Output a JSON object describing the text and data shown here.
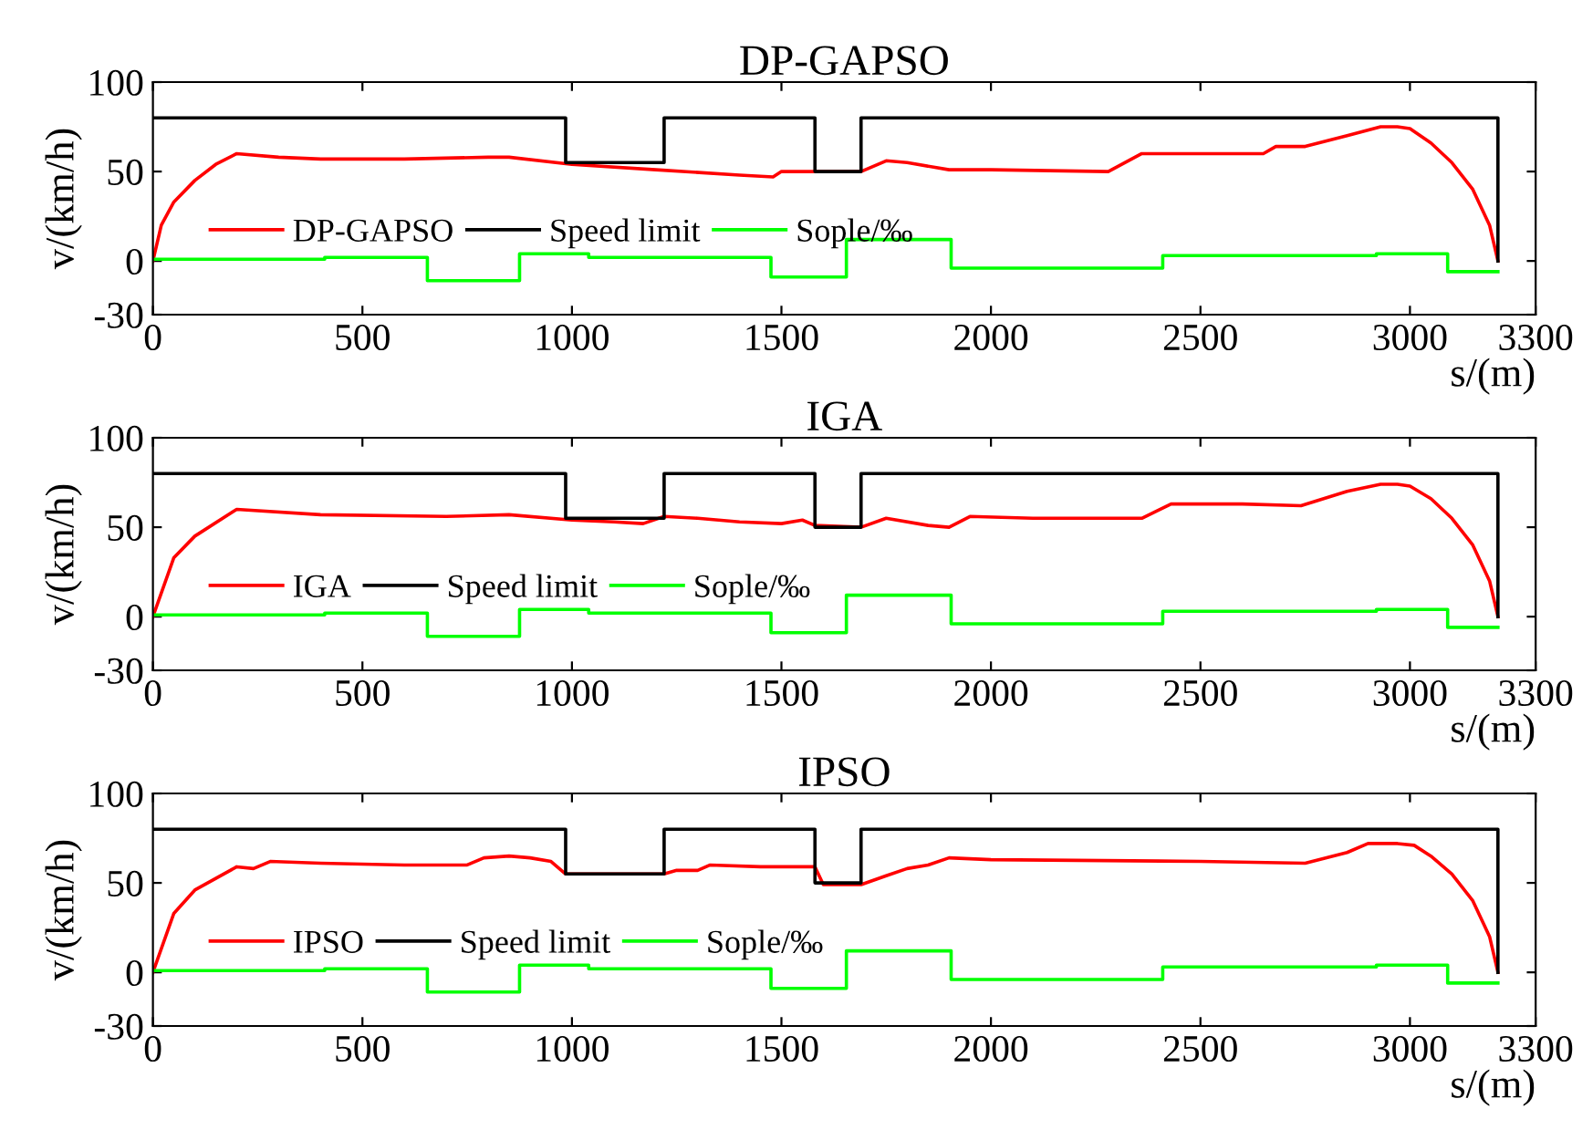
{
  "chart_data": [
    {
      "type": "line",
      "title": "DP-GAPSO",
      "xlabel": "s/(m)",
      "ylabel": "v/(km/h)",
      "xlim": [
        0,
        3300
      ],
      "xticks": [
        0,
        500,
        1000,
        1500,
        2000,
        2500,
        3000,
        3300
      ],
      "ylim": [
        -30,
        100
      ],
      "yticks": [
        -30,
        0,
        50,
        100
      ],
      "grid": false,
      "legend": "left",
      "marker": "none",
      "line_style": "solid",
      "series": [
        {
          "name": "DP-GAPSO",
          "color": "#ff0000",
          "x": [
            0,
            20,
            50,
            100,
            150,
            200,
            300,
            400,
            600,
            800,
            850,
            1000,
            1200,
            1400,
            1480,
            1500,
            1690,
            1750,
            1800,
            1900,
            2000,
            2280,
            2360,
            2500,
            2650,
            2680,
            2750,
            2850,
            2930,
            2970,
            3000,
            3050,
            3100,
            3150,
            3190,
            3210
          ],
          "values": [
            0,
            20,
            33,
            45,
            54,
            60,
            58,
            57,
            57,
            58,
            58,
            54,
            51,
            48,
            47,
            50,
            50,
            56,
            55,
            51,
            51,
            50,
            60,
            60,
            60,
            64,
            64,
            70,
            75,
            75,
            74,
            66,
            55,
            40,
            20,
            0
          ]
        },
        {
          "name": "Speed limit",
          "color": "#000000",
          "x": [
            0,
            985,
            985,
            1220,
            1220,
            1580,
            1580,
            1690,
            1690,
            3210,
            3210
          ],
          "values": [
            80,
            80,
            55,
            55,
            80,
            80,
            50,
            50,
            80,
            80,
            0
          ]
        },
        {
          "name": "Sople/‰",
          "color": "#00ff00",
          "x": [
            0,
            410,
            410,
            655,
            655,
            875,
            875,
            1040,
            1040,
            1475,
            1475,
            1655,
            1655,
            1905,
            1905,
            2410,
            2410,
            2920,
            2920,
            3090,
            3090,
            3210
          ],
          "values": [
            1,
            1,
            2,
            2,
            -11,
            -11,
            4,
            4,
            2,
            2,
            -9,
            -9,
            12,
            12,
            -4,
            -4,
            3,
            3,
            4,
            4,
            -6,
            -6
          ]
        }
      ]
    },
    {
      "type": "line",
      "title": "IGA",
      "xlabel": "s/(m)",
      "ylabel": "v/(km/h)",
      "xlim": [
        0,
        3300
      ],
      "xticks": [
        0,
        500,
        1000,
        1500,
        2000,
        2500,
        3000,
        3300
      ],
      "ylim": [
        -30,
        100
      ],
      "yticks": [
        -30,
        0,
        50,
        100
      ],
      "grid": false,
      "legend": "left",
      "marker": "none",
      "line_style": "solid",
      "series": [
        {
          "name": "IGA",
          "color": "#ff0000",
          "x": [
            0,
            50,
            100,
            200,
            400,
            700,
            850,
            1000,
            1100,
            1170,
            1220,
            1300,
            1400,
            1500,
            1550,
            1580,
            1690,
            1750,
            1850,
            1900,
            1950,
            2100,
            2360,
            2430,
            2600,
            2740,
            2850,
            2930,
            2970,
            3000,
            3050,
            3100,
            3150,
            3190,
            3210
          ],
          "values": [
            0,
            33,
            45,
            60,
            57,
            56,
            57,
            54,
            53,
            52,
            56,
            55,
            53,
            52,
            54,
            51,
            50,
            55,
            51,
            50,
            56,
            55,
            55,
            63,
            63,
            62,
            70,
            74,
            74,
            73,
            66,
            55,
            40,
            20,
            0
          ]
        },
        {
          "name": "Speed limit",
          "color": "#000000",
          "x": [
            0,
            985,
            985,
            1220,
            1220,
            1580,
            1580,
            1690,
            1690,
            3210,
            3210
          ],
          "values": [
            80,
            80,
            55,
            55,
            80,
            80,
            50,
            50,
            80,
            80,
            0
          ]
        },
        {
          "name": "Sople/‰",
          "color": "#00ff00",
          "x": [
            0,
            410,
            410,
            655,
            655,
            875,
            875,
            1040,
            1040,
            1475,
            1475,
            1655,
            1655,
            1905,
            1905,
            2410,
            2410,
            2920,
            2920,
            3090,
            3090,
            3210
          ],
          "values": [
            1,
            1,
            2,
            2,
            -11,
            -11,
            4,
            4,
            2,
            2,
            -9,
            -9,
            12,
            12,
            -4,
            -4,
            3,
            3,
            4,
            4,
            -6,
            -6
          ]
        }
      ]
    },
    {
      "type": "line",
      "title": "IPSO",
      "xlabel": "s/(m)",
      "ylabel": "v/(km/h)",
      "xlim": [
        0,
        3300
      ],
      "xticks": [
        0,
        500,
        1000,
        1500,
        2000,
        2500,
        3000,
        3300
      ],
      "ylim": [
        -30,
        100
      ],
      "yticks": [
        -30,
        0,
        50,
        100
      ],
      "grid": false,
      "legend": "left",
      "marker": "none",
      "line_style": "solid",
      "series": [
        {
          "name": "IPSO",
          "color": "#ff0000",
          "x": [
            0,
            50,
            100,
            200,
            240,
            280,
            400,
            600,
            750,
            790,
            850,
            900,
            950,
            985,
            1220,
            1250,
            1300,
            1330,
            1450,
            1580,
            1600,
            1690,
            1750,
            1800,
            1850,
            1900,
            2000,
            2500,
            2750,
            2850,
            2900,
            2970,
            3010,
            3050,
            3100,
            3150,
            3190,
            3210
          ],
          "values": [
            0,
            33,
            46,
            59,
            58,
            62,
            61,
            60,
            60,
            64,
            65,
            64,
            62,
            55,
            55,
            57,
            57,
            60,
            59,
            59,
            49,
            49,
            54,
            58,
            60,
            64,
            63,
            62,
            61,
            67,
            72,
            72,
            71,
            65,
            55,
            40,
            20,
            0
          ]
        },
        {
          "name": "Speed limit",
          "color": "#000000",
          "x": [
            0,
            985,
            985,
            1220,
            1220,
            1580,
            1580,
            1690,
            1690,
            3210,
            3210
          ],
          "values": [
            80,
            80,
            55,
            55,
            80,
            80,
            50,
            50,
            80,
            80,
            0
          ]
        },
        {
          "name": "Sople/‰",
          "color": "#00ff00",
          "x": [
            0,
            410,
            410,
            655,
            655,
            875,
            875,
            1040,
            1040,
            1475,
            1475,
            1655,
            1655,
            1905,
            1905,
            2410,
            2410,
            2920,
            2920,
            3090,
            3090,
            3210
          ],
          "values": [
            1,
            1,
            2,
            2,
            -11,
            -11,
            4,
            4,
            2,
            2,
            -9,
            -9,
            12,
            12,
            -4,
            -4,
            3,
            3,
            4,
            4,
            -6,
            -6
          ]
        }
      ]
    }
  ]
}
